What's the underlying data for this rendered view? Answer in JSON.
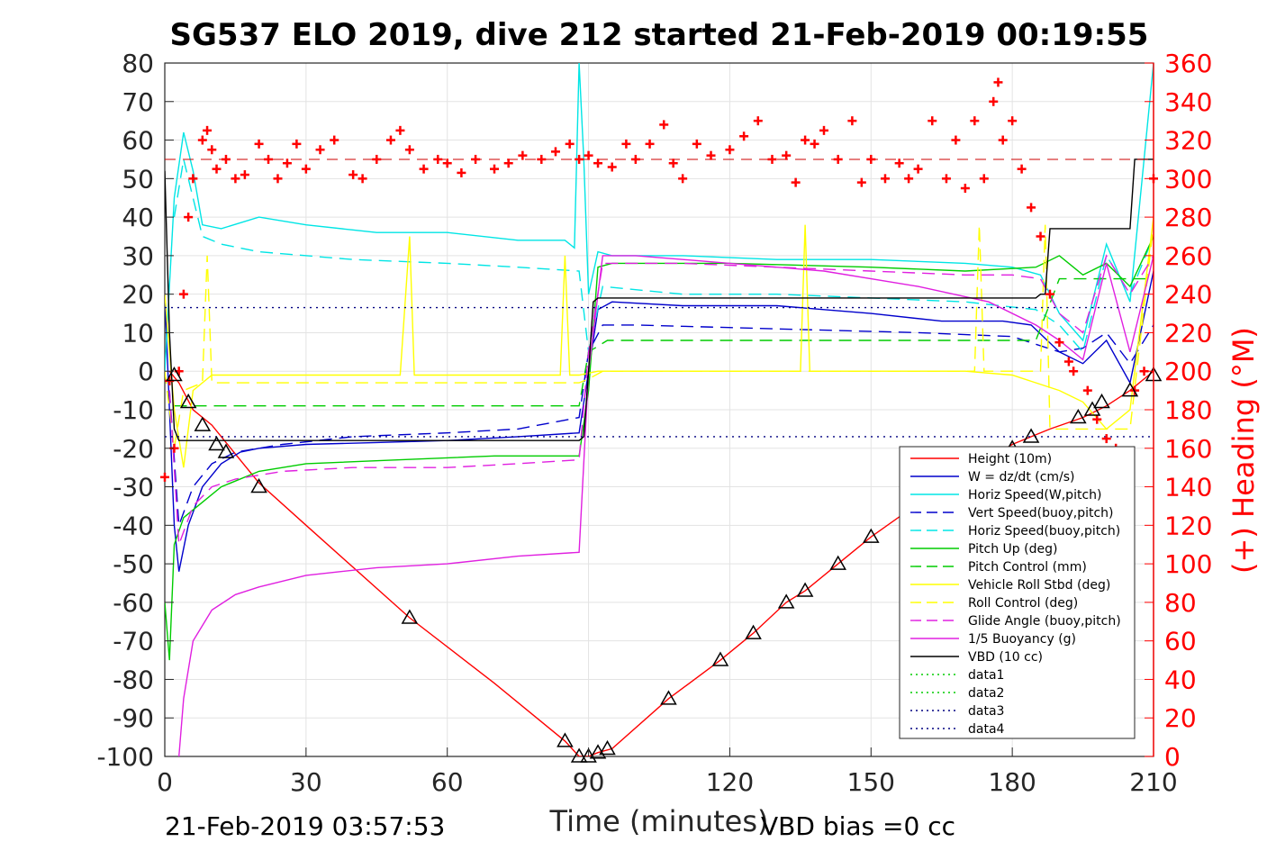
{
  "chart_data": {
    "type": "line",
    "title": "SG537 ELO 2019, dive 212 started 21-Feb-2019 00:19:55",
    "xlabel": "Time (minutes)",
    "ylabel": "",
    "y2label": "(+) Heading (°M)",
    "xlim": [
      0,
      210
    ],
    "ylim": [
      -100,
      80
    ],
    "y2lim": [
      0,
      360
    ],
    "x_ticks": [
      0,
      30,
      60,
      90,
      120,
      150,
      180,
      210
    ],
    "y_ticks": [
      80,
      70,
      60,
      50,
      40,
      30,
      20,
      10,
      0,
      -10,
      -20,
      -30,
      -40,
      -50,
      -60,
      -70,
      -80,
      -90,
      -100
    ],
    "y2_ticks": [
      360,
      340,
      320,
      300,
      280,
      260,
      240,
      220,
      200,
      180,
      160,
      140,
      120,
      100,
      80,
      60,
      40,
      20,
      0
    ],
    "grid": true,
    "legend_position": "bottom-right",
    "footer_left": "21-Feb-2019 03:57:53",
    "footer_right": "VBD bias =0 cc",
    "series": [
      {
        "name": "Height (10m)",
        "color": "#ff0000",
        "style": "solid",
        "axis": "left",
        "x": [
          1,
          3,
          6,
          10,
          14,
          20,
          30,
          52,
          70,
          85,
          88,
          90,
          92,
          95,
          107,
          118,
          125,
          132,
          136,
          143,
          150,
          165,
          180,
          188,
          195,
          200,
          205,
          210
        ],
        "y": [
          0,
          -3,
          -10,
          -14,
          -20,
          -29,
          -40,
          -64,
          -81,
          -96,
          -100,
          -100,
          -99,
          -98,
          -85,
          -75,
          -68,
          -60,
          -57,
          -50,
          -43,
          -30,
          -19,
          -15,
          -12,
          -9,
          -5,
          0
        ]
      },
      {
        "name": "W = dz/dt (cm/s)",
        "color": "#0000cc",
        "style": "solid",
        "axis": "left",
        "x": [
          0,
          1,
          2,
          3,
          5,
          8,
          12,
          16,
          20,
          30,
          45,
          60,
          75,
          88,
          90,
          92,
          95,
          110,
          130,
          150,
          165,
          178,
          184,
          190,
          195,
          200,
          205,
          210
        ],
        "y": [
          20,
          -10,
          -40,
          -52,
          -40,
          -30,
          -24,
          -21,
          -20,
          -19,
          -18.5,
          -18,
          -17,
          -16,
          0,
          16,
          18,
          17,
          17,
          15,
          13,
          13,
          12,
          5,
          2,
          8,
          -3,
          26
        ]
      },
      {
        "name": "Horiz Speed(W,pitch)",
        "color": "#00e5e5",
        "style": "solid",
        "axis": "left",
        "x": [
          0,
          2,
          4,
          6,
          8,
          12,
          20,
          30,
          45,
          60,
          75,
          85,
          87,
          88,
          89,
          90,
          92,
          95,
          110,
          130,
          150,
          170,
          180,
          186,
          190,
          195,
          200,
          205,
          210
        ],
        "y": [
          0,
          45,
          62,
          52,
          38,
          37,
          40,
          38,
          36,
          36,
          34,
          34,
          32,
          80,
          55,
          20,
          31,
          30,
          30,
          29,
          29,
          28,
          27,
          25,
          15,
          8,
          33,
          18,
          80
        ]
      },
      {
        "name": "Vert Speed(buoy,pitch)",
        "color": "#0000cc",
        "style": "dashed",
        "axis": "left",
        "x": [
          1,
          3,
          6,
          10,
          15,
          25,
          40,
          60,
          75,
          88,
          90,
          93,
          100,
          130,
          160,
          180,
          190,
          195,
          200,
          205,
          210
        ],
        "y": [
          -5,
          -40,
          -30,
          -24,
          -21,
          -19,
          -17,
          -16,
          -15,
          -12,
          5,
          12,
          12,
          11,
          10,
          9,
          5,
          6,
          10,
          2,
          12
        ]
      },
      {
        "name": "Horiz Speed(buoy,pitch)",
        "color": "#00e5e5",
        "style": "dashed",
        "axis": "left",
        "x": [
          2,
          4,
          8,
          12,
          20,
          40,
          60,
          75,
          88,
          90,
          93,
          110,
          130,
          150,
          170,
          185,
          190,
          195,
          200,
          205,
          210
        ],
        "y": [
          40,
          55,
          35,
          33,
          31,
          29,
          28,
          27,
          26,
          5,
          22,
          20,
          20,
          19,
          18,
          16,
          12,
          5,
          30,
          20,
          35
        ]
      },
      {
        "name": "Pitch Up (deg)",
        "color": "#00cc00",
        "style": "solid",
        "axis": "left",
        "x": [
          0,
          1,
          2,
          4,
          8,
          12,
          20,
          30,
          50,
          70,
          88,
          90,
          92,
          95,
          120,
          150,
          170,
          185,
          190,
          195,
          200,
          205,
          210
        ],
        "y": [
          -60,
          -75,
          -45,
          -38,
          -34,
          -30,
          -26,
          -24,
          -23,
          -22,
          -22,
          -5,
          27,
          28,
          28,
          27,
          26,
          27,
          30,
          25,
          28,
          22,
          35
        ]
      },
      {
        "name": "Pitch Control (mm)",
        "color": "#00cc00",
        "style": "dashed",
        "axis": "left",
        "x": [
          2,
          5,
          88,
          90,
          94,
          185,
          190,
          210
        ],
        "y": [
          -9,
          -9,
          -9,
          5,
          8,
          8,
          24,
          24
        ]
      },
      {
        "name": "Vehicle Roll Stbd (deg)",
        "color": "#ffff00",
        "style": "solid",
        "axis": "left",
        "x": [
          0,
          2,
          4,
          6,
          10,
          20,
          50,
          52,
          53,
          84,
          85,
          86,
          88,
          92,
          110,
          135,
          136,
          137,
          170,
          180,
          190,
          195,
          200,
          205,
          210
        ],
        "y": [
          20,
          -10,
          -25,
          -5,
          -1,
          -1,
          -1,
          35,
          -1,
          -1,
          30,
          -1,
          -1,
          0,
          0,
          0,
          38,
          0,
          0,
          -1,
          -5,
          -8,
          -15,
          -10,
          40
        ]
      },
      {
        "name": "Roll Control (deg)",
        "color": "#ffff00",
        "style": "dashed",
        "axis": "left",
        "x": [
          0,
          2,
          4,
          8,
          9,
          10,
          88,
          90,
          93,
          172,
          173,
          174,
          180,
          186,
          187,
          188,
          200,
          205,
          210
        ],
        "y": [
          0,
          -20,
          -5,
          -3,
          30,
          -3,
          -3,
          -2,
          0,
          0,
          38,
          0,
          0,
          0,
          38,
          -15,
          -15,
          -15,
          38
        ]
      },
      {
        "name": "Glide Angle (buoy,pitch)",
        "color": "#e020e0",
        "style": "dashed",
        "axis": "left",
        "x": [
          1,
          3,
          6,
          10,
          15,
          25,
          40,
          60,
          75,
          88,
          90,
          93,
          110,
          130,
          150,
          170,
          180,
          186,
          190,
          195,
          200,
          205,
          210
        ],
        "y": [
          -5,
          -45,
          -35,
          -30,
          -28,
          -26,
          -25,
          -25,
          -24,
          -23,
          5,
          28,
          28,
          27,
          26,
          25,
          25,
          24,
          15,
          10,
          30,
          20,
          30
        ]
      },
      {
        "name": "1/5 Buoyancy (g)",
        "color": "#e020e0",
        "style": "solid",
        "axis": "left",
        "x": [
          3,
          4,
          6,
          10,
          15,
          20,
          30,
          45,
          60,
          75,
          88,
          90,
          93,
          100,
          120,
          140,
          160,
          175,
          185,
          190,
          195,
          200,
          205,
          210
        ],
        "y": [
          -100,
          -85,
          -70,
          -62,
          -58,
          -56,
          -53,
          -51,
          -50,
          -48,
          -47,
          0,
          30,
          30,
          28,
          26,
          22,
          18,
          12,
          8,
          3,
          28,
          5,
          30
        ]
      },
      {
        "name": "VBD (10 cc)",
        "color": "#000000",
        "style": "solid",
        "axis": "left",
        "x": [
          0,
          1,
          2,
          3,
          88,
          89,
          90,
          91,
          92,
          100,
          185,
          186,
          187,
          188,
          205,
          206,
          207,
          210
        ],
        "y": [
          52,
          10,
          -15,
          -18,
          -18,
          -17,
          0,
          18,
          19,
          19,
          19,
          20,
          20,
          37,
          37,
          55,
          55,
          55
        ]
      },
      {
        "name": "data1",
        "color": "#00cc00",
        "style": "dotted",
        "axis": "left",
        "x": [],
        "y": []
      },
      {
        "name": "data2",
        "color": "#00cc00",
        "style": "dotted",
        "axis": "left",
        "x": [],
        "y": []
      },
      {
        "name": "data3",
        "color": "#000080",
        "style": "dotted",
        "axis": "left",
        "x": [
          0,
          210
        ],
        "y": [
          16.5,
          16.5
        ]
      },
      {
        "name": "data4",
        "color": "#000080",
        "style": "dotted",
        "axis": "left",
        "x": [
          0,
          210
        ],
        "y": [
          -17,
          -17
        ]
      }
    ],
    "heading_reference": {
      "color": "#cc0000",
      "style": "dashed",
      "axis": "right",
      "value": 310
    },
    "heading_series": {
      "color": "#ff0000",
      "marker": "+",
      "axis": "right",
      "x": [
        0,
        1,
        2,
        3,
        4,
        5,
        6,
        8,
        9,
        10,
        11,
        13,
        15,
        17,
        20,
        22,
        24,
        26,
        28,
        30,
        33,
        36,
        40,
        42,
        45,
        48,
        50,
        52,
        55,
        58,
        60,
        63,
        66,
        70,
        73,
        76,
        80,
        83,
        86,
        88,
        90,
        92,
        95,
        98,
        100,
        103,
        106,
        108,
        110,
        113,
        116,
        120,
        123,
        126,
        129,
        132,
        134,
        136,
        138,
        140,
        143,
        146,
        148,
        150,
        153,
        156,
        158,
        160,
        163,
        166,
        168,
        170,
        172,
        174,
        176,
        177,
        178,
        180,
        182,
        184,
        186,
        188,
        190,
        192,
        193,
        194,
        196,
        198,
        200,
        202,
        204,
        206,
        208,
        210
      ],
      "y": [
        145,
        195,
        160,
        200,
        240,
        280,
        300,
        320,
        325,
        315,
        305,
        310,
        300,
        302,
        318,
        310,
        300,
        308,
        318,
        305,
        315,
        320,
        302,
        300,
        310,
        320,
        325,
        315,
        305,
        310,
        308,
        303,
        310,
        305,
        308,
        312,
        310,
        314,
        318,
        310,
        312,
        308,
        306,
        318,
        310,
        318,
        328,
        308,
        300,
        318,
        312,
        315,
        322,
        330,
        310,
        312,
        298,
        320,
        318,
        325,
        310,
        330,
        298,
        310,
        300,
        308,
        300,
        305,
        330,
        300,
        320,
        295,
        330,
        300,
        340,
        350,
        320,
        330,
        305,
        285,
        270,
        240,
        215,
        205,
        200,
        150,
        190,
        175,
        165,
        160,
        150,
        190,
        200,
        300
      ]
    },
    "annotations": {
      "dive_markers": {
        "symbol": "triangle",
        "x": [
          2,
          5,
          8,
          11,
          13,
          20,
          52,
          85,
          88,
          90,
          92,
          94,
          107,
          118,
          125,
          132,
          136,
          143,
          150,
          180,
          184,
          194,
          197,
          199,
          205,
          210
        ],
        "y": [
          -1,
          -8,
          -14,
          -19,
          -21,
          -30,
          -64,
          -96,
          -100,
          -100,
          -99,
          -98,
          -85,
          -75,
          -68,
          -60,
          -57,
          -50,
          -43,
          -20,
          -17,
          -12,
          -10,
          -8,
          -5,
          -1
        ]
      }
    }
  }
}
